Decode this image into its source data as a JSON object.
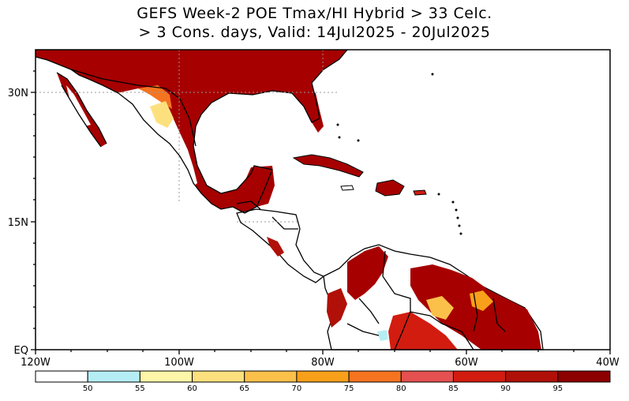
{
  "title": {
    "line1": "GEFS Week-2 POE Tmax/HI Hybrid > 33 Celc.",
    "line2": "> 3 Cons. days, Valid: 14Jul2025 - 20Jul2025"
  },
  "axes": {
    "y_labels": [
      "30N",
      "15N",
      "EQ"
    ],
    "x_labels": [
      "120W",
      "100W",
      "80W",
      "60W",
      "40W"
    ]
  },
  "colorbar": {
    "labels": [
      "50",
      "55",
      "60",
      "65",
      "70",
      "75",
      "80",
      "85",
      "90",
      "95"
    ],
    "colors": [
      "#ffffff",
      "#b4eef4",
      "#fdf5a8",
      "#fde07e",
      "#fbc04a",
      "#f9a01a",
      "#f57420",
      "#e55050",
      "#d21c10",
      "#b01008",
      "#8c0000"
    ]
  },
  "map": {
    "extent": {
      "lon_min": -120,
      "lon_max": -40,
      "lat_min": 0,
      "lat_max": 35
    },
    "land_color": "#ffffff",
    "ocean_color": "#ffffff",
    "dominant_fill": "#a60000"
  }
}
